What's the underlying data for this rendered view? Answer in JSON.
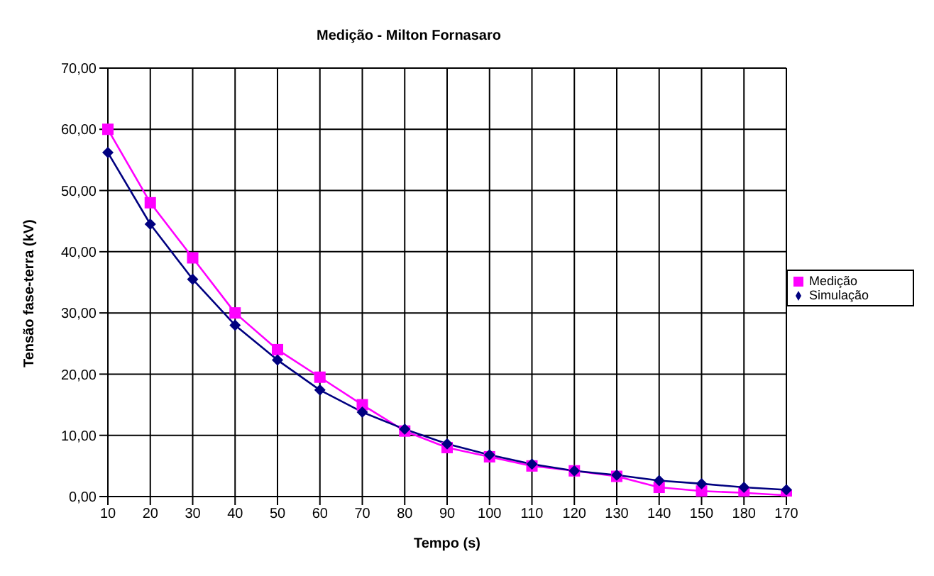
{
  "chart_data": {
    "type": "line",
    "title": "Medição - Milton Fornasaro",
    "xlabel": "Tempo (s)",
    "ylabel": "Tensão fase-terra (kV)",
    "categories": [
      "10",
      "20",
      "30",
      "40",
      "50",
      "60",
      "70",
      "80",
      "90",
      "100",
      "110",
      "120",
      "130",
      "140",
      "150",
      "180",
      "170"
    ],
    "series": [
      {
        "name": "Medição",
        "color": "#ff00ff",
        "marker": "square",
        "values": [
          60,
          48,
          39,
          30,
          24,
          19.5,
          15,
          10.7,
          8,
          6.5,
          5,
          4.2,
          3.3,
          1.5,
          0.9,
          0.6,
          0.2
        ]
      },
      {
        "name": "Simulação",
        "color": "#000080",
        "marker": "diamond",
        "values": [
          56.2,
          44.5,
          35.5,
          28,
          22.3,
          17.4,
          13.8,
          11,
          8.6,
          6.8,
          5.3,
          4.2,
          3.5,
          2.6,
          2.1,
          1.5,
          1.1
        ]
      }
    ],
    "ylim": [
      0,
      70
    ],
    "yticks": [
      {
        "value": 0,
        "label": "0,00"
      },
      {
        "value": 10,
        "label": "10,00"
      },
      {
        "value": 20,
        "label": "20,00"
      },
      {
        "value": 30,
        "label": "30,00"
      },
      {
        "value": 40,
        "label": "40,00"
      },
      {
        "value": 50,
        "label": "50,00"
      },
      {
        "value": 60,
        "label": "60,00"
      },
      {
        "value": 70,
        "label": "70,00"
      }
    ],
    "grid": true,
    "legend": "right",
    "line_style": "solid"
  }
}
